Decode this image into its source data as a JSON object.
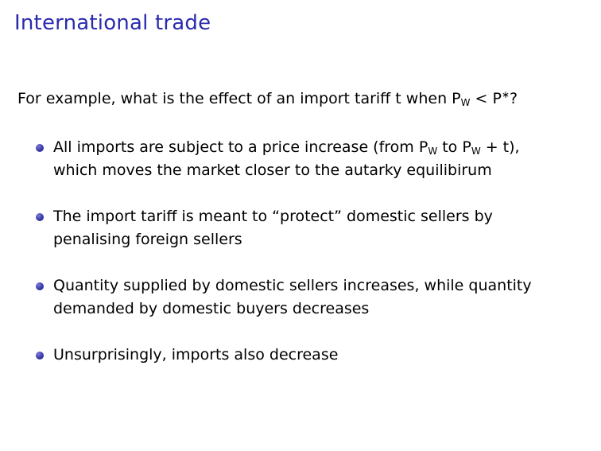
{
  "title": "International trade",
  "intro": {
    "lead": "For example, what is the effect of an import tariff t when P",
    "sub": "W",
    "rel": " < ",
    "p": "P",
    "sup": "∗",
    "end": "?"
  },
  "bullets": [
    {
      "line1_a": "All imports are subject to a price increase (from P",
      "line1_sub1": "W",
      "line1_b": " to P",
      "line1_sub2": "W",
      "line1_c": " + t),",
      "line2": "which moves the market closer to the autarky equilibirum"
    },
    {
      "line1": "The import tariff is meant to “protect” domestic sellers by",
      "line2": "penalising foreign sellers"
    },
    {
      "line1": "Quantity supplied by domestic sellers increases, while quantity",
      "line2": "demanded by domestic buyers decreases"
    },
    {
      "line1": "Unsurprisingly, imports also decrease"
    }
  ],
  "colors": {
    "title": "#2b2bb0",
    "bullet": "#3a3aa8"
  }
}
